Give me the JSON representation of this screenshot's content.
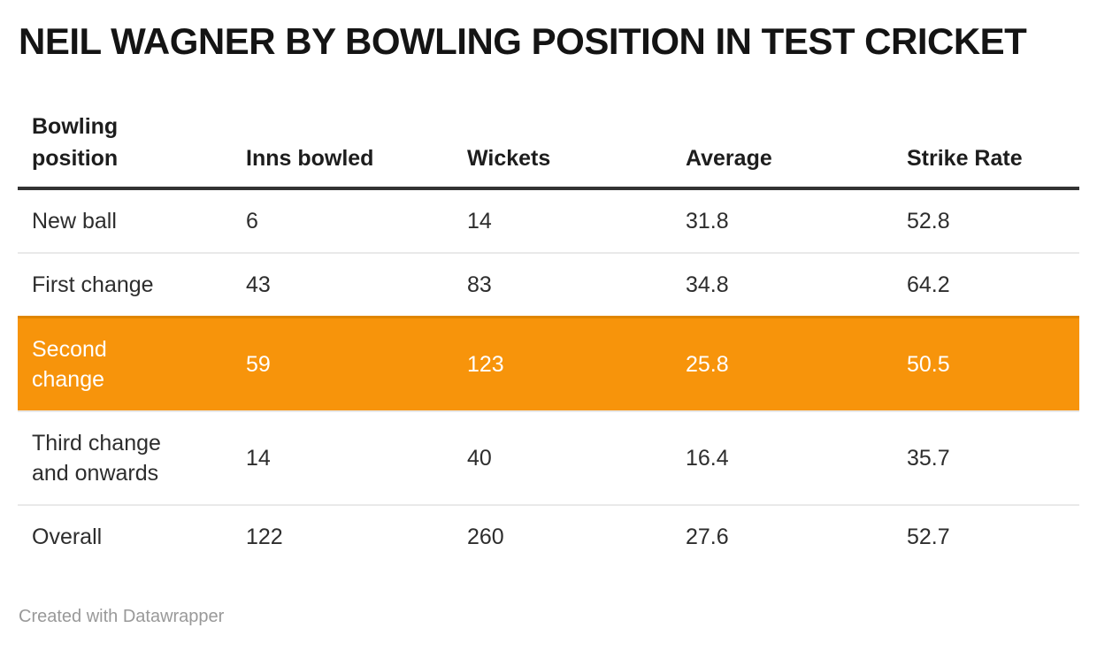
{
  "title": "NEIL WAGNER BY BOWLING POSITION IN TEST CRICKET",
  "table": {
    "columns": [
      "Bowling\nposition",
      "Inns bowled",
      "Wickets",
      "Average",
      "Strike Rate"
    ],
    "rows": [
      {
        "position": "New ball",
        "inns": "6",
        "wickets": "14",
        "average": "31.8",
        "strike_rate": "52.8"
      },
      {
        "position": "First change",
        "inns": "43",
        "wickets": "83",
        "average": "34.8",
        "strike_rate": "64.2"
      },
      {
        "position": "Second\nchange",
        "inns": "59",
        "wickets": "123",
        "average": "25.8",
        "strike_rate": "50.5"
      },
      {
        "position": "Third change\nand onwards",
        "inns": "14",
        "wickets": "40",
        "average": "16.4",
        "strike_rate": "35.7"
      },
      {
        "position": "Overall",
        "inns": "122",
        "wickets": "260",
        "average": "27.6",
        "strike_rate": "52.7"
      }
    ],
    "highlighted_row": "Second change"
  },
  "footer": {
    "attribution": "Created with Datawrapper"
  },
  "colors": {
    "highlight": "#f7940b",
    "highlight_text": "#ffffff",
    "highlight_border": "#e08600",
    "header_rule": "#333333",
    "row_divider": "#e9e9e9",
    "footer_text": "#999999"
  },
  "chart_data": {
    "type": "table",
    "title": "NEIL WAGNER BY BOWLING POSITION IN TEST CRICKET",
    "columns": [
      "Bowling position",
      "Inns bowled",
      "Wickets",
      "Average",
      "Strike Rate"
    ],
    "rows": [
      [
        "New ball",
        6,
        14,
        31.8,
        52.8
      ],
      [
        "First change",
        43,
        83,
        34.8,
        64.2
      ],
      [
        "Second change",
        59,
        123,
        25.8,
        50.5
      ],
      [
        "Third change and onwards",
        14,
        40,
        16.4,
        35.7
      ],
      [
        "Overall",
        122,
        260,
        27.6,
        52.7
      ]
    ],
    "highlighted_row_index": 2,
    "attribution": "Created with Datawrapper"
  }
}
